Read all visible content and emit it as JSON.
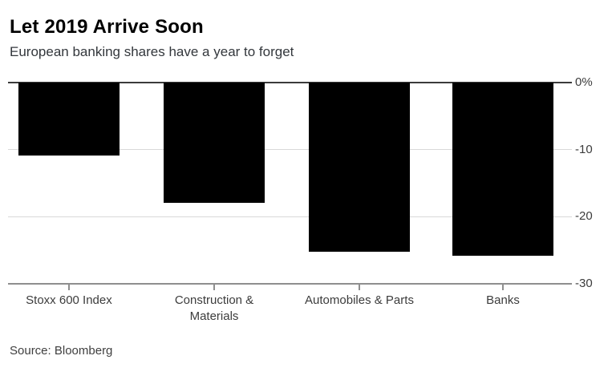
{
  "chart_data": {
    "type": "bar",
    "title": "Let 2019 Arrive Soon",
    "subtitle": "European banking shares have a year to forget",
    "source": "Source: Bloomberg",
    "categories": [
      "Stoxx 600 Index",
      "Construction & Materials",
      "Automobiles & Parts",
      "Banks"
    ],
    "values": [
      -10.9,
      -17.9,
      -25.2,
      -25.8
    ],
    "unit": "%",
    "xlabel": "",
    "ylabel": "",
    "ylim": [
      -30,
      0
    ],
    "yticks": [
      {
        "value": 0,
        "label": "0%"
      },
      {
        "value": -10,
        "label": "-10"
      },
      {
        "value": -20,
        "label": "-20"
      },
      {
        "value": -30,
        "label": "-30"
      }
    ],
    "grid": true,
    "legend": false,
    "bar_color": "#000000",
    "zero_line_color": "#3b3b3b",
    "grid_color": "#d9d9d9",
    "axis_color": "#8f8f8f",
    "label_color": "#3c3c3c"
  }
}
